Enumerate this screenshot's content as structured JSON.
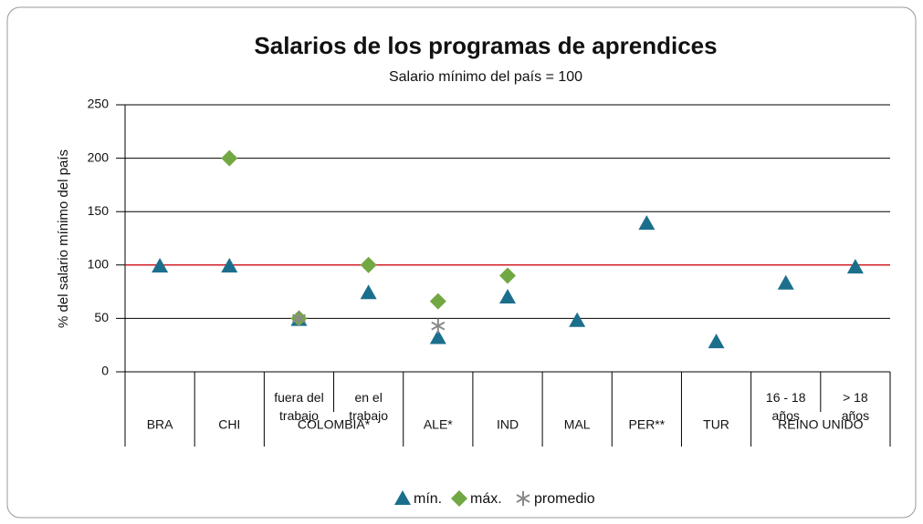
{
  "chart_data": {
    "type": "scatter",
    "title": "Salarios de los programas de aprendices",
    "subtitle": "Salario mínimo del país = 100",
    "y_label": "% del salario mínimo del país",
    "categories": [
      null,
      null,
      "fuera del\ntrabajo",
      "en el\ntrabajo",
      null,
      null,
      null,
      null,
      null,
      "16 - 18\naños",
      "> 18\naños"
    ],
    "groups": [
      {
        "name": "BRA",
        "size": 1
      },
      {
        "name": "CHI",
        "size": 1
      },
      {
        "name": "COLOMBIA*",
        "size": 2
      },
      {
        "name": "ALE*",
        "size": 1
      },
      {
        "name": "IND",
        "size": 1
      },
      {
        "name": "MAL",
        "size": 1
      },
      {
        "name": "PER**",
        "size": 1
      },
      {
        "name": "TUR",
        "size": 1
      },
      {
        "name": "REINO UNIDO",
        "size": 2
      }
    ],
    "series": [
      {
        "name": "mín.",
        "marker": "triangle",
        "color": "#1b6f8c",
        "values": [
          99,
          99,
          49,
          74,
          32,
          70,
          48,
          139,
          28,
          83,
          98
        ]
      },
      {
        "name": "máx.",
        "marker": "diamond",
        "color": "#72a843",
        "values": [
          null,
          200,
          50,
          100,
          66,
          90,
          null,
          null,
          null,
          null,
          null
        ]
      },
      {
        "name": "promedio",
        "marker": "asterisk",
        "color": "#8a8a8a",
        "values": [
          null,
          null,
          50,
          null,
          43,
          null,
          null,
          null,
          null,
          null,
          null
        ]
      }
    ],
    "reference_line": {
      "value": 100,
      "color": "#d0202a"
    },
    "ylim": [
      0,
      250
    ],
    "yticks": [
      0,
      50,
      100,
      150,
      200,
      250
    ],
    "grid": true
  }
}
